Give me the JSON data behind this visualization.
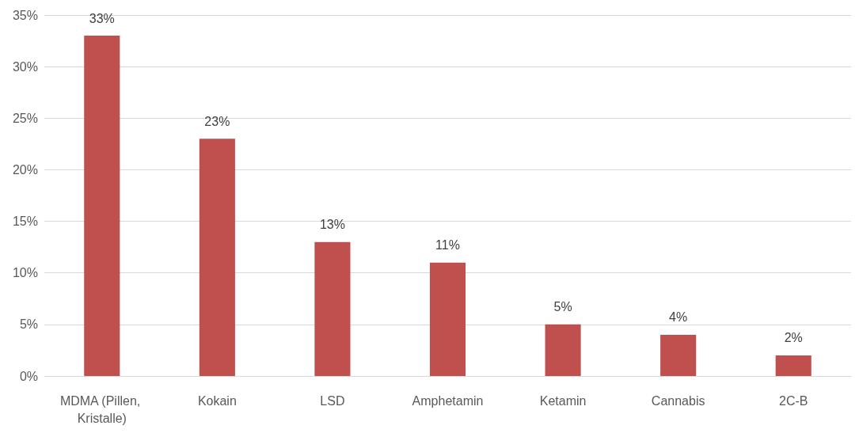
{
  "chart_data": {
    "type": "bar",
    "categories": [
      "MDMA (Pillen, Kristalle)",
      "Kokain",
      "LSD",
      "Amphetamin",
      "Ketamin",
      "Cannabis",
      "2C-B"
    ],
    "values": [
      33,
      23,
      13,
      11,
      5,
      4,
      2
    ],
    "value_labels": [
      "33%",
      "23%",
      "13%",
      "11%",
      "5%",
      "4%",
      "2%"
    ],
    "color": "#c0504d",
    "ylim": [
      0,
      35
    ],
    "yticks": [
      {
        "value": 0,
        "label": "0%"
      },
      {
        "value": 5,
        "label": "5%"
      },
      {
        "value": 10,
        "label": "10%"
      },
      {
        "value": 15,
        "label": "15%"
      },
      {
        "value": 20,
        "label": "20%"
      },
      {
        "value": 25,
        "label": "25%"
      },
      {
        "value": 30,
        "label": "30%"
      },
      {
        "value": 35,
        "label": "35%"
      }
    ],
    "grid": "y"
  }
}
